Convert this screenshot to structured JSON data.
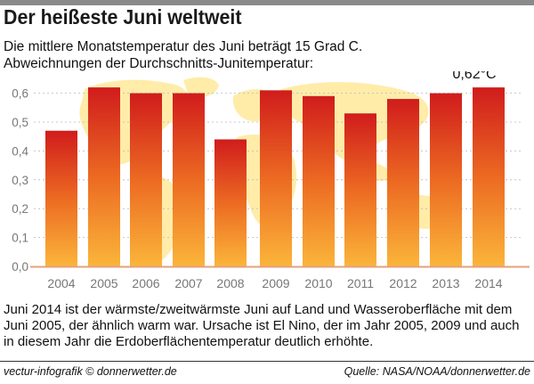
{
  "header": {
    "title": "Der heißeste Juni weltweit",
    "subtitle_line1": "Die mittlere Monatstemperatur des Juni beträgt 15 Grad C.",
    "subtitle_line2": "Abweichnungen der Durchschnitts-Junitemperatur:"
  },
  "chart_data": {
    "type": "bar",
    "categories": [
      "2004",
      "2005",
      "2006",
      "2007",
      "2008",
      "2009",
      "2010",
      "2011",
      "2012",
      "2013",
      "2014"
    ],
    "values": [
      0.47,
      0.62,
      0.6,
      0.6,
      0.44,
      0.61,
      0.59,
      0.53,
      0.58,
      0.6,
      0.62
    ],
    "y_ticks": [
      "0,0",
      "0,1",
      "0,2",
      "0,3",
      "0,4",
      "0,5",
      "0,6"
    ],
    "ylim": [
      0,
      0.66
    ],
    "annotation": "0,62°C",
    "annotated_category": "2014",
    "grid": "horizontal dashed",
    "colors": {
      "bar_top": "#d01c1c",
      "bar_mid": "#ec6a22",
      "bar_bottom": "#fbb53a",
      "axis_labels": "#777777",
      "map_land": "#ffe99a",
      "baseline": "#e4a07c"
    }
  },
  "caption": "Juni 2014 ist der wärmste/zweitwärmste Juni auf Land und Wasseroberfläche mit dem Juni 2005, der ähnlich warm war. Ursache ist El Nino, der im Jahr 2005, 2009 und auch in diesem Jahr die Erdoberflächentemperatur deutlich erhöhte.",
  "footer": {
    "credit": "vectur-infografik © donnerwetter.de",
    "source": "Quelle: NASA/NOAA/donnerwetter.de"
  }
}
